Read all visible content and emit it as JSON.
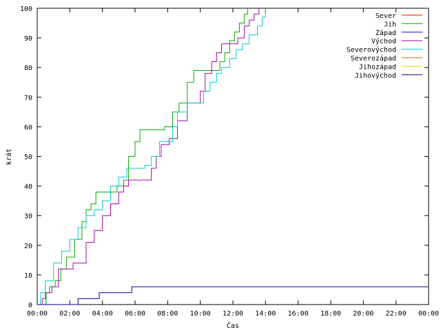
{
  "chart_data": {
    "type": "line",
    "title": "",
    "xlabel": "Čas",
    "ylabel": "krát",
    "xlim": [
      0,
      24
    ],
    "ylim": [
      0,
      100
    ],
    "grid": false,
    "legend_position": "top-right",
    "x_ticks": [
      "00:00",
      "02:00",
      "04:00",
      "06:00",
      "08:00",
      "10:00",
      "12:00",
      "14:00",
      "16:00",
      "18:00",
      "20:00",
      "22:00",
      "00:00"
    ],
    "y_ticks": [
      "0",
      "10",
      "20",
      "30",
      "40",
      "50",
      "60",
      "70",
      "80",
      "90",
      "100"
    ],
    "series": [
      {
        "name": "Sever",
        "color": "#ff0000",
        "step": true,
        "x": [],
        "y": []
      },
      {
        "name": "Jih",
        "color": "#00aa00",
        "step": true,
        "x": [
          0,
          0.55,
          0.75,
          1.1,
          1.45,
          1.8,
          2.3,
          2.75,
          3.0,
          3.3,
          3.6,
          4.2,
          4.9,
          5.3,
          5.6,
          6.0,
          6.3,
          6.7,
          7.8,
          8.3,
          8.7,
          9.2,
          9.6,
          10.8,
          11.2,
          11.5,
          11.8,
          12.1,
          12.4,
          12.7,
          12.9
        ],
        "y": [
          0,
          4,
          6,
          8,
          12,
          16,
          22,
          28,
          32,
          34,
          38,
          38,
          40,
          42,
          50,
          55,
          59,
          59,
          60,
          65,
          68,
          75,
          79,
          79,
          82,
          85,
          89,
          92,
          95,
          98,
          100
        ]
      },
      {
        "name": "Západ",
        "color": "#0000ff",
        "step": true,
        "x": [],
        "y": []
      },
      {
        "name": "Východ",
        "color": "#aa00aa",
        "step": true,
        "x": [
          0,
          0.3,
          0.5,
          0.9,
          1.3,
          2.2,
          3.0,
          3.5,
          4.0,
          4.5,
          5.0,
          5.3,
          5.6,
          6.7,
          7.0,
          7.3,
          7.6,
          8.1,
          8.6,
          9.2,
          9.7,
          10.0,
          10.3,
          10.7,
          11.0,
          11.3,
          11.5,
          12.3,
          12.7,
          13.0,
          13.3,
          13.6
        ],
        "y": [
          0,
          2,
          4,
          6,
          12,
          14,
          21,
          25,
          30,
          34,
          38,
          40,
          42,
          42,
          46,
          50,
          54,
          56,
          62,
          68,
          68,
          72,
          78,
          82,
          85,
          88,
          88,
          90,
          94,
          96,
          98,
          100
        ]
      },
      {
        "name": "Severovýchod",
        "color": "#00cccc",
        "step": true,
        "x": [
          0,
          0.2,
          0.5,
          1.0,
          1.5,
          2.0,
          2.5,
          3.0,
          3.5,
          4.0,
          4.5,
          5.0,
          5.5,
          6.0,
          6.6,
          7.0,
          7.5,
          8.3,
          8.6,
          9.2,
          9.8,
          10.2,
          10.6,
          11.0,
          11.3,
          11.8,
          12.2,
          12.6,
          13.0,
          13.5,
          13.8,
          14.0
        ],
        "y": [
          0,
          4,
          8,
          14,
          18,
          22,
          26,
          30,
          32,
          35,
          40,
          43,
          46,
          46,
          47,
          50,
          55,
          60,
          65,
          68,
          68,
          72,
          75,
          78,
          80,
          83,
          86,
          88,
          91,
          94,
          97,
          100
        ]
      },
      {
        "name": "Severozápad",
        "color": "#cc6600",
        "step": true,
        "x": [],
        "y": []
      },
      {
        "name": "Jihozápad",
        "color": "#dddd00",
        "step": true,
        "x": [],
        "y": []
      },
      {
        "name": "Jihovýchod",
        "color": "#000099",
        "step": true,
        "x": [
          0,
          2.5,
          3.8,
          5.8,
          24
        ],
        "y": [
          0,
          2,
          4,
          6,
          6
        ]
      }
    ]
  }
}
